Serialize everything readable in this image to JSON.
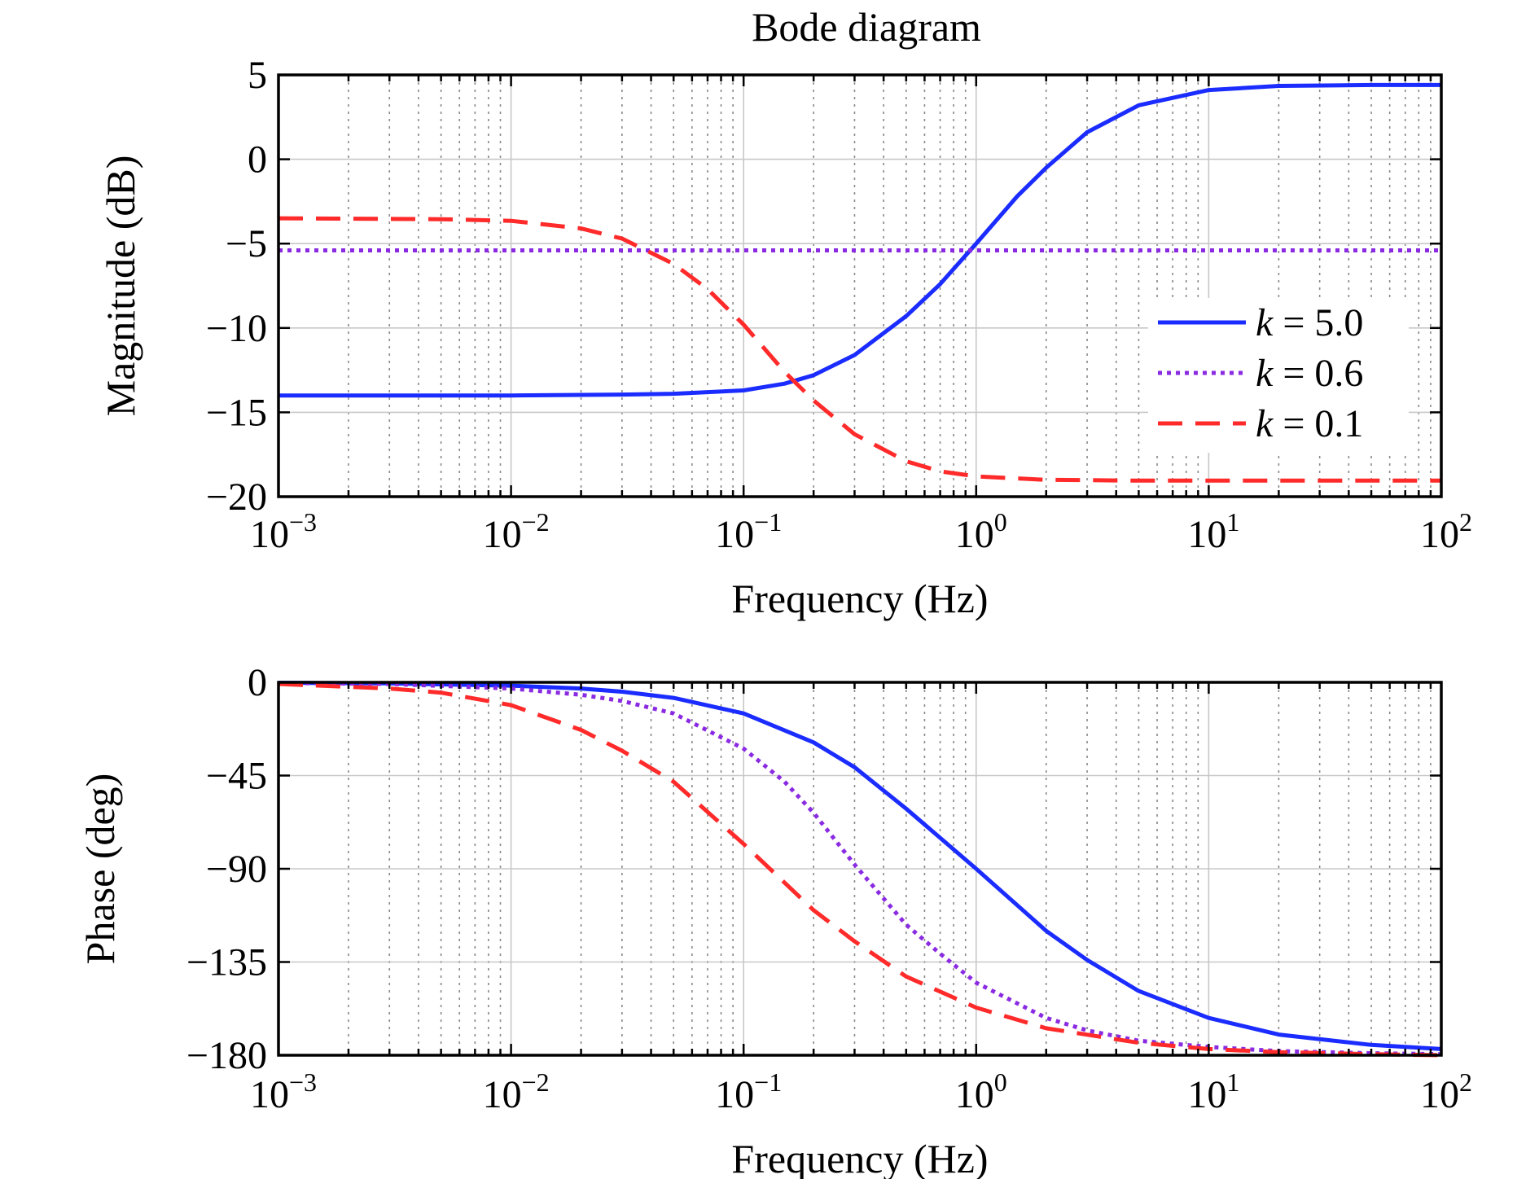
{
  "chart_data": [
    {
      "type": "line",
      "title": "Bode diagram",
      "xlabel": "Frequency (Hz)",
      "ylabel": "Magnitude (dB)",
      "xscale": "log",
      "xlim": [
        0.001,
        100
      ],
      "ylim": [
        -20,
        5
      ],
      "x_tick_labels": [
        {
          "base": "10",
          "exp": "−3"
        },
        {
          "base": "10",
          "exp": "−2"
        },
        {
          "base": "10",
          "exp": "−1"
        },
        {
          "base": "10",
          "exp": "0"
        },
        {
          "base": "10",
          "exp": "1"
        },
        {
          "base": "10",
          "exp": "2"
        }
      ],
      "y_ticks": [
        5,
        0,
        -5,
        -10,
        -15,
        -20
      ],
      "y_tick_labels": [
        "5",
        "0",
        "−5",
        "−10",
        "−15",
        "−20"
      ],
      "grid": true,
      "legend": {
        "position": "right",
        "entries": [
          {
            "var": "k",
            "value": " = 5.0",
            "style": "solid",
            "color": "#1a2cff"
          },
          {
            "var": "k",
            "value": " = 0.6",
            "style": "dotted",
            "color": "#8a2be2"
          },
          {
            "var": "k",
            "value": " = 0.1",
            "style": "dashed",
            "color": "#ff2a2a"
          }
        ]
      },
      "series": [
        {
          "name": "k = 5.0",
          "style": "solid",
          "color": "#1a2cff",
          "x": [
            0.001,
            0.003,
            0.01,
            0.03,
            0.05,
            0.1,
            0.15,
            0.2,
            0.3,
            0.5,
            0.7,
            1,
            1.5,
            2,
            3,
            5,
            10,
            20,
            50,
            100
          ],
          "y": [
            -14,
            -14,
            -14,
            -13.95,
            -13.9,
            -13.7,
            -13.3,
            -12.8,
            -11.6,
            -9.3,
            -7.4,
            -5,
            -2.2,
            -0.5,
            1.6,
            3.2,
            4.1,
            4.35,
            4.4,
            4.4
          ]
        },
        {
          "name": "k = 0.6",
          "style": "dotted",
          "color": "#8a2be2",
          "x": [
            0.001,
            100
          ],
          "y": [
            -5.4,
            -5.4
          ]
        },
        {
          "name": "k = 0.1",
          "style": "dashed",
          "color": "#ff2a2a",
          "x": [
            0.001,
            0.005,
            0.01,
            0.02,
            0.03,
            0.05,
            0.07,
            0.1,
            0.15,
            0.2,
            0.3,
            0.5,
            0.7,
            1,
            2,
            5,
            10,
            100
          ],
          "y": [
            -3.5,
            -3.55,
            -3.65,
            -4.1,
            -4.7,
            -6.2,
            -7.7,
            -9.8,
            -12.6,
            -14.3,
            -16.3,
            -17.9,
            -18.5,
            -18.8,
            -19,
            -19.05,
            -19.05,
            -19.05
          ]
        }
      ]
    },
    {
      "type": "line",
      "title": "",
      "xlabel": "Frequency (Hz)",
      "ylabel": "Phase (deg)",
      "xscale": "log",
      "xlim": [
        0.001,
        100
      ],
      "ylim": [
        -180,
        0
      ],
      "x_tick_labels": [
        {
          "base": "10",
          "exp": "−3"
        },
        {
          "base": "10",
          "exp": "−2"
        },
        {
          "base": "10",
          "exp": "−1"
        },
        {
          "base": "10",
          "exp": "0"
        },
        {
          "base": "10",
          "exp": "1"
        },
        {
          "base": "10",
          "exp": "2"
        }
      ],
      "y_ticks": [
        0,
        -45,
        -90,
        -135,
        -180
      ],
      "y_tick_labels": [
        "0",
        "−45",
        "−90",
        "−135",
        "−180"
      ],
      "grid": true,
      "series": [
        {
          "name": "k = 5.0",
          "style": "solid",
          "color": "#1a2cff",
          "x": [
            0.001,
            0.003,
            0.01,
            0.02,
            0.03,
            0.05,
            0.1,
            0.2,
            0.3,
            0.5,
            1,
            2,
            3,
            5,
            10,
            20,
            50,
            100
          ],
          "y": [
            -0.2,
            -0.5,
            -1.6,
            -3,
            -4.5,
            -7.5,
            -15,
            -29,
            -41,
            -61,
            -90,
            -120,
            -134,
            -149,
            -162,
            -170,
            -175,
            -177
          ]
        },
        {
          "name": "k = 0.6",
          "style": "dotted",
          "color": "#8a2be2",
          "x": [
            0.001,
            0.003,
            0.01,
            0.02,
            0.03,
            0.05,
            0.1,
            0.15,
            0.2,
            0.3,
            0.5,
            0.7,
            1,
            2,
            3,
            5,
            10,
            20,
            50,
            100
          ],
          "y": [
            -0.3,
            -0.8,
            -3,
            -6,
            -9,
            -15,
            -32,
            -48,
            -63,
            -88,
            -117,
            -131,
            -145,
            -162,
            -168,
            -173,
            -176,
            -178,
            -179,
            -179.5
          ]
        },
        {
          "name": "k = 0.1",
          "style": "dashed",
          "color": "#ff2a2a",
          "x": [
            0.001,
            0.003,
            0.005,
            0.01,
            0.02,
            0.03,
            0.05,
            0.1,
            0.2,
            0.3,
            0.5,
            1,
            2,
            5,
            10,
            20,
            50,
            100
          ],
          "y": [
            -0.8,
            -3,
            -5,
            -11,
            -23,
            -33,
            -48,
            -78,
            -110,
            -125,
            -142,
            -157,
            -167,
            -174,
            -177,
            -178.5,
            -179.5,
            -180
          ]
        }
      ]
    }
  ]
}
